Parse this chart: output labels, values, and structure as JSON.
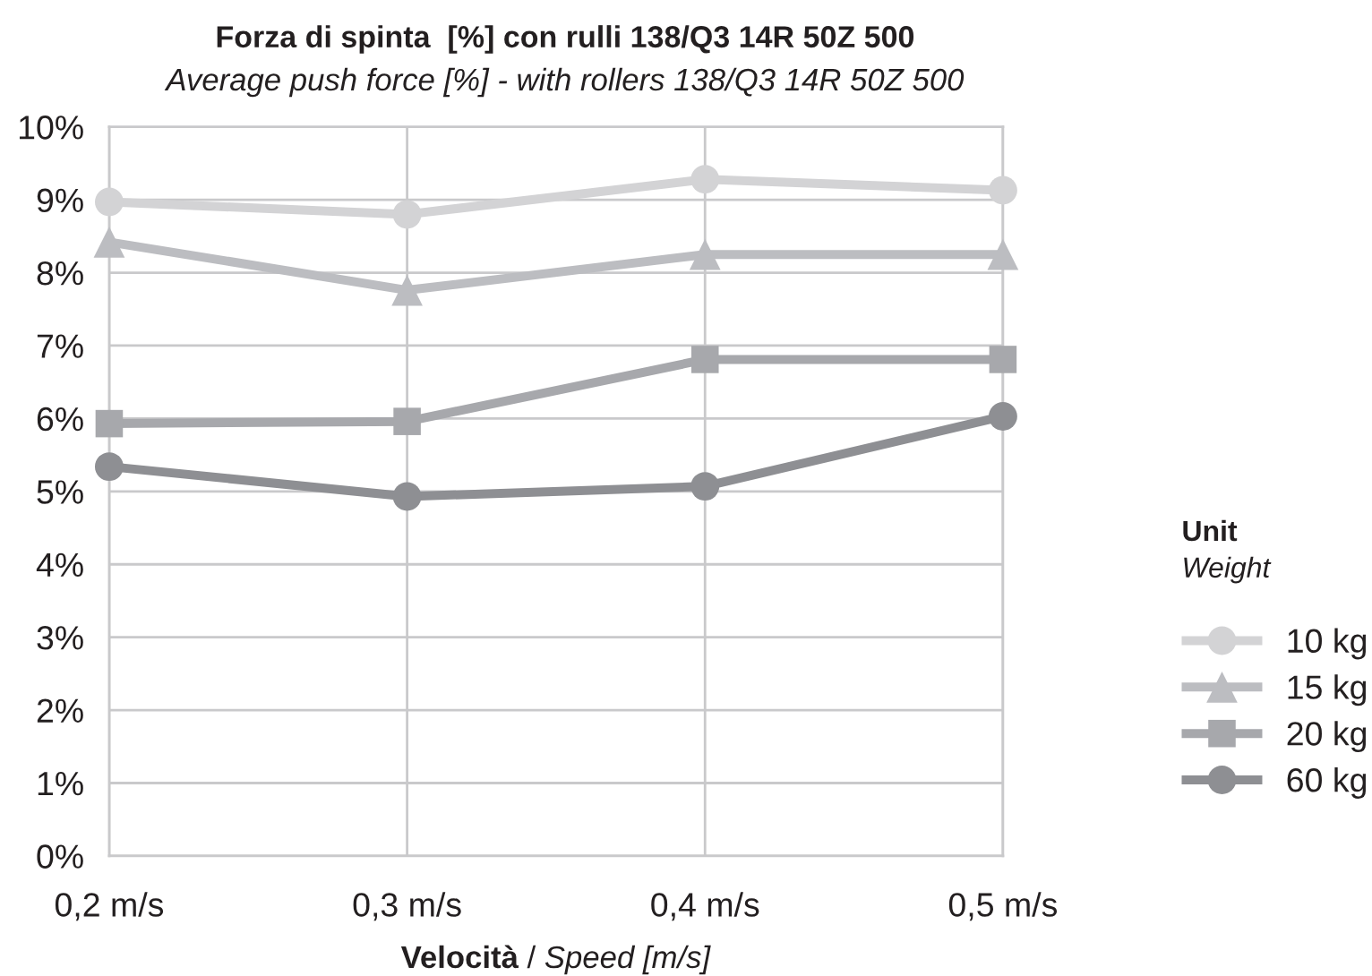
{
  "chart_data": {
    "type": "line",
    "title": "Forza di spinta  [%] con rulli 138/Q3 14R 50Z 500",
    "subtitle": "Average push force [%] - with rollers 138/Q3 14R 50Z 500",
    "xlabel": "Velocità / Speed [m/s]",
    "legend_title": "Unit\nWeight",
    "categories": [
      "0,2 m/s",
      "0,3 m/s",
      "0,4 m/s",
      "0,5 m/s"
    ],
    "series": [
      {
        "name": "10 kg",
        "color": "#d3d3d5",
        "marker": "circle",
        "values": [
          8.97,
          8.8,
          9.28,
          9.13
        ]
      },
      {
        "name": "15 kg",
        "color": "#bcbdc1",
        "marker": "triangle",
        "values": [
          8.42,
          7.76,
          8.25,
          8.25
        ]
      },
      {
        "name": "20 kg",
        "color": "#a7a8ac",
        "marker": "square",
        "values": [
          5.93,
          5.96,
          6.81,
          6.81
        ]
      },
      {
        "name": "60 kg",
        "color": "#8e8f93",
        "marker": "circle",
        "values": [
          5.34,
          4.93,
          5.07,
          6.03
        ]
      }
    ],
    "ylim": [
      0,
      10
    ],
    "yticks": [
      {
        "value": 0,
        "label": "0%"
      },
      {
        "value": 1,
        "label": "1%"
      },
      {
        "value": 2,
        "label": "2%"
      },
      {
        "value": 3,
        "label": "3%"
      },
      {
        "value": 4,
        "label": "4%"
      },
      {
        "value": 5,
        "label": "5%"
      },
      {
        "value": 6,
        "label": "6%"
      },
      {
        "value": 7,
        "label": "7%"
      },
      {
        "value": 8,
        "label": "8%"
      },
      {
        "value": 9,
        "label": "9%"
      },
      {
        "value": 10,
        "label": "10%"
      }
    ],
    "grid": true,
    "legend": "right",
    "line_style": "solid"
  }
}
